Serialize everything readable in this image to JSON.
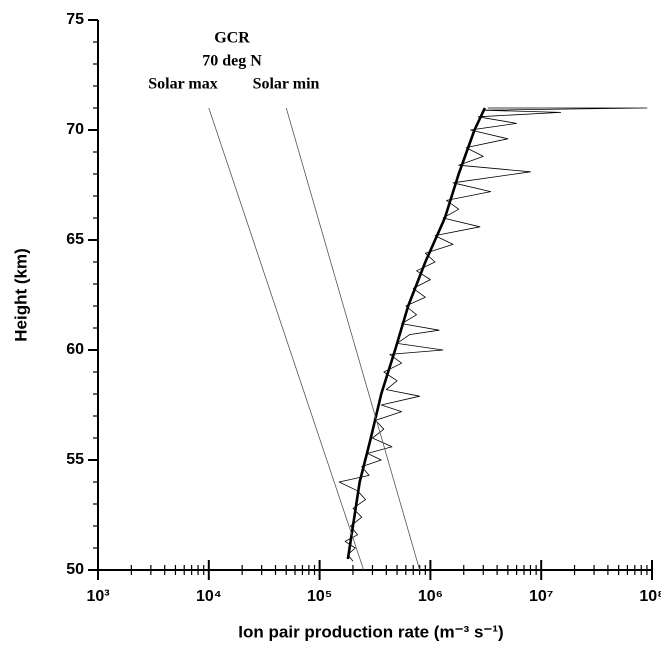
{
  "chart_data": {
    "type": "line",
    "xlabel": "Ion pair production rate (m⁻³ s⁻¹)",
    "ylabel": "Height (km)",
    "annotations": [
      "GCR",
      "70 deg N"
    ],
    "xscale": "log",
    "minor_ticks": true,
    "xlim": [
      1000,
      100000000
    ],
    "ylim": [
      50,
      75
    ],
    "xticks": [
      {
        "value": 1000,
        "label": "10³"
      },
      {
        "value": 10000,
        "label": "10⁴"
      },
      {
        "value": 100000,
        "label": "10⁵"
      },
      {
        "value": 1000000,
        "label": "10⁶"
      },
      {
        "value": 10000000,
        "label": "10⁷"
      },
      {
        "value": 100000000,
        "label": "10⁸"
      }
    ],
    "yticks": [
      50,
      55,
      60,
      65,
      70,
      75
    ],
    "series": [
      {
        "color": "#000000",
        "width": 0.8,
        "x": [
          200000,
          180000,
          210000,
          170000,
          220000,
          190000,
          240000,
          200000,
          260000,
          220000,
          150000,
          280000,
          240000,
          360000,
          270000,
          450000,
          300000,
          380000,
          320000,
          550000,
          360000,
          800000,
          400000,
          500000,
          380000,
          550000,
          430000,
          1300000,
          500000,
          650000,
          1200000,
          550000,
          750000,
          600000,
          900000,
          700000,
          1000000,
          750000,
          1100000,
          900000,
          1600000,
          1100000,
          2800000,
          1300000,
          1800000,
          1400000,
          3500000,
          1600000,
          8000000,
          1800000,
          3000000,
          2100000,
          5000000,
          2300000,
          6000000,
          2700000,
          15000000,
          3000000,
          90000000,
          3300000
        ],
        "y": [
          50.4,
          50.7,
          51.0,
          51.3,
          51.6,
          52.0,
          52.4,
          52.8,
          53.2,
          53.6,
          54.0,
          54.3,
          54.7,
          55.0,
          55.3,
          55.6,
          56.0,
          56.4,
          56.8,
          57.2,
          57.5,
          57.9,
          58.2,
          58.6,
          59.0,
          59.4,
          59.8,
          60.0,
          60.3,
          60.7,
          60.9,
          61.2,
          61.6,
          62.0,
          62.4,
          62.8,
          63.2,
          63.6,
          64.0,
          64.4,
          64.8,
          65.2,
          65.6,
          66.0,
          66.4,
          66.8,
          67.2,
          67.6,
          68.1,
          68.4,
          68.8,
          69.2,
          69.6,
          70.0,
          70.3,
          70.6,
          70.8,
          70.9,
          71.0,
          71.0
        ]
      },
      {
        "color": "#000000",
        "width": 2.6,
        "x": [
          180000,
          200000,
          230000,
          290000,
          360000,
          480000,
          630000,
          900000,
          1350000,
          1800000,
          2500000,
          3100000
        ],
        "y": [
          50.5,
          52,
          54,
          56,
          58,
          60,
          62,
          64,
          66,
          68,
          70,
          71
        ]
      },
      {
        "name": "Solar max",
        "color": "#555555",
        "width": 0.8,
        "x": [
          10000,
          250000
        ],
        "y": [
          71,
          50
        ]
      },
      {
        "name": "Solar min",
        "color": "#555555",
        "width": 0.8,
        "x": [
          50000,
          800000
        ],
        "y": [
          71,
          50
        ]
      }
    ]
  }
}
